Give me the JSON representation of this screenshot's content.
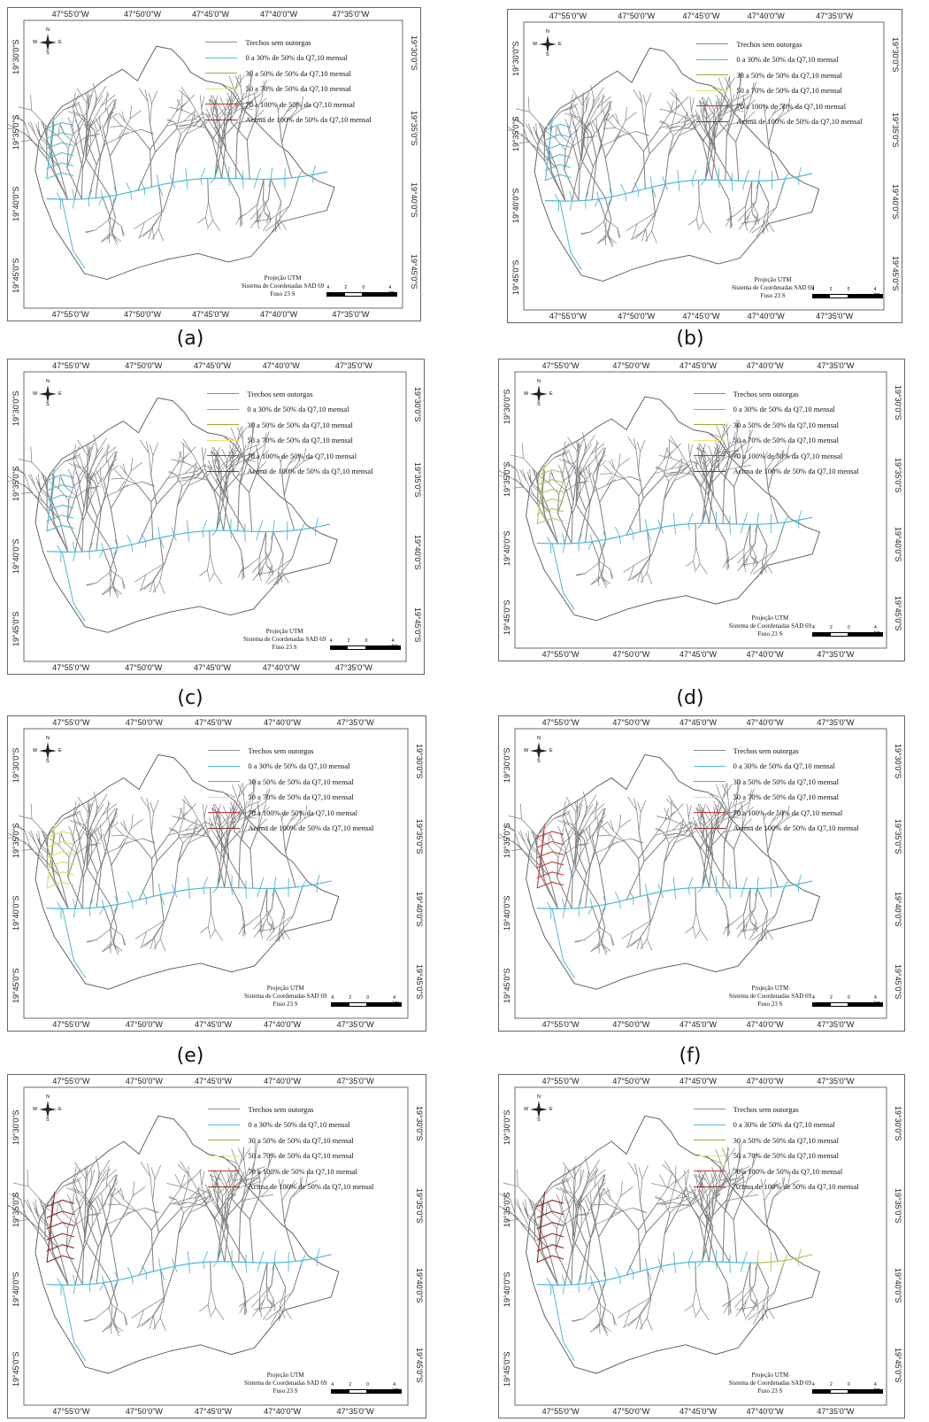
{
  "panels": [
    {
      "caption": "(a)",
      "variant": "a"
    },
    {
      "caption": "(b)",
      "variant": "b"
    },
    {
      "caption": "(c)",
      "variant": "c"
    },
    {
      "caption": "(d)",
      "variant": "d"
    },
    {
      "caption": "(e)",
      "variant": "e"
    },
    {
      "caption": "(f)",
      "variant": "f"
    },
    {
      "caption": "",
      "variant": "g"
    },
    {
      "caption": "",
      "variant": "h"
    }
  ],
  "longitude_ticks": [
    "47°55'0\"W",
    "47°50'0\"W",
    "47°45'0\"W",
    "47°40'0\"W",
    "47°35'0\"W"
  ],
  "latitude_ticks": [
    "19°30'0\"S",
    "19°35'0\"S",
    "19°40'0\"S",
    "19°45'0\"S"
  ],
  "legend": [
    {
      "label": "Trechos sem outorgas",
      "color": "#8c8c8c"
    },
    {
      "label": "0 a 30% de 50% da Q7,10 mensal",
      "color": "#4fb8d8"
    },
    {
      "label": "30 a 50% de 50% da Q7,10 mensal",
      "color": "#9aaa3a"
    },
    {
      "label": "50 a 70% de 50% da Q7,10 mensal",
      "color": "#e6e660"
    },
    {
      "label": "70 a 100% de 50% da Q7,10 mensal",
      "color": "#d03030"
    },
    {
      "label": "Acima de 100% de 50% da Q7,10 mensal",
      "color": "#8b2a2a"
    }
  ],
  "footer": {
    "line1": "Projeção UTM",
    "line2": "Sistema de Coordenadas SAD 69",
    "line3": "Fuso 23 S"
  },
  "scale": {
    "labels": [
      "4",
      "2",
      "0",
      "4 km"
    ]
  },
  "compass": {
    "n": "N",
    "s": "S",
    "e": "E",
    "w": "W"
  }
}
